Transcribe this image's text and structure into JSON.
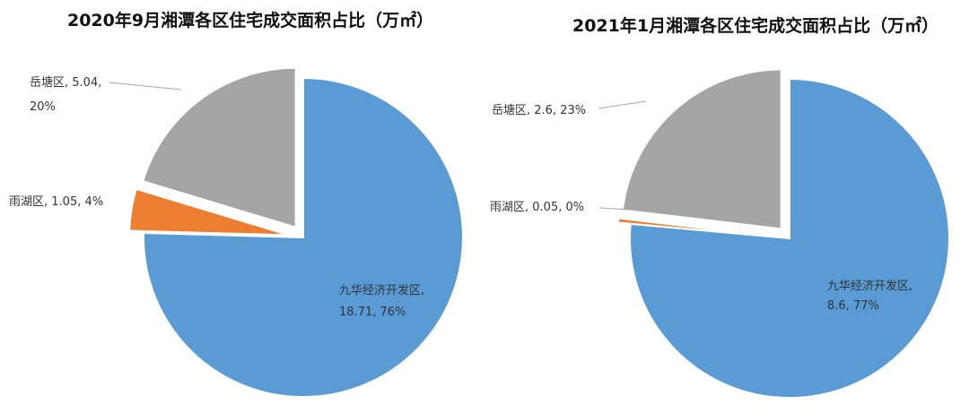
{
  "chart_data": [
    {
      "type": "pie",
      "title": "2020年9月湘潭各区住宅成交面积占比（万㎡）",
      "slices": [
        {
          "name": "九华经济开发区",
          "value": 18.71,
          "percent": "76%",
          "color": "#5b9bd5",
          "label_lines": [
            "九华经济开发区,",
            "18.71, 76%"
          ]
        },
        {
          "name": "雨湖区",
          "value": 1.05,
          "percent": "4%",
          "color": "#ed7d31",
          "label_lines": [
            "雨湖区, 1.05, 4%"
          ]
        },
        {
          "name": "岳塘区",
          "value": 5.04,
          "percent": "20%",
          "color": "#a5a5a5",
          "label_lines": [
            "岳塘区, 5.04,",
            "20%"
          ]
        }
      ]
    },
    {
      "type": "pie",
      "title": "2021年1月湘潭各区住宅成交面积占比（万㎡）",
      "slices": [
        {
          "name": "九华经济开发区",
          "value": 8.6,
          "percent": "77%",
          "color": "#5b9bd5",
          "label_lines": [
            "九华经济开发区,",
            "8.6, 77%"
          ]
        },
        {
          "name": "雨湖区",
          "value": 0.05,
          "percent": "0%",
          "color": "#ed7d31",
          "label_lines": [
            "雨湖区, 0.05, 0%"
          ]
        },
        {
          "name": "岳塘区",
          "value": 2.6,
          "percent": "23%",
          "color": "#a5a5a5",
          "label_lines": [
            "岳塘区, 2.6, 23%"
          ]
        }
      ]
    }
  ]
}
